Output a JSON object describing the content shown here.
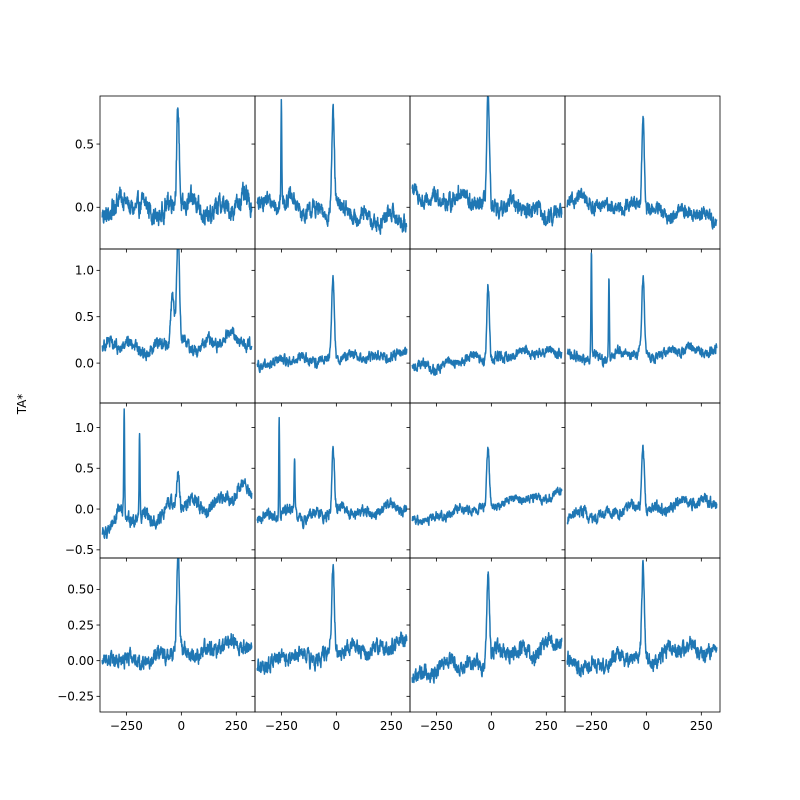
{
  "figure": {
    "ylabel": "TA*",
    "line_color": "#1f77b4",
    "frame_color": "#000000",
    "background": "#ffffff"
  },
  "chart_data": {
    "type": "line",
    "grid": false,
    "layout": "4x4 shared axes per row (y) and column (x)",
    "xlim": [
      -370,
      335
    ],
    "x_ticks": [
      -250,
      0,
      250
    ],
    "x_tick_labels": [
      "−250",
      "0",
      "250"
    ],
    "rows": [
      {
        "ylim": [
          -0.33,
          0.88
        ],
        "y_ticks": [
          0.0,
          0.5
        ],
        "y_tick_labels": [
          "0.0",
          "0.5"
        ]
      },
      {
        "ylim": [
          -0.43,
          1.23
        ],
        "y_ticks": [
          0.0,
          0.5,
          1.0
        ],
        "y_tick_labels": [
          "0.0",
          "0.5",
          "1.0"
        ]
      },
      {
        "ylim": [
          -0.6,
          1.3
        ],
        "y_ticks": [
          -0.5,
          0.0,
          0.5,
          1.0
        ],
        "y_tick_labels": [
          "−0.5",
          "0.0",
          "0.5",
          "1.0"
        ]
      },
      {
        "ylim": [
          -0.36,
          0.72
        ],
        "y_ticks": [
          -0.25,
          0.0,
          0.25,
          0.5
        ],
        "y_tick_labels": [
          "−0.25",
          "0.00",
          "0.25",
          "0.50"
        ]
      }
    ],
    "panels": [
      {
        "row": 0,
        "col": 0,
        "x_range": [
          -360,
          320
        ],
        "baseline": [
          0.0,
          0.0
        ],
        "noise": 0.06,
        "wave": 0.08,
        "lines": [
          {
            "x": -15,
            "height": 0.75,
            "width": 6
          }
        ]
      },
      {
        "row": 0,
        "col": 1,
        "x_range": [
          -360,
          320
        ],
        "baseline": [
          0.05,
          -0.12
        ],
        "noise": 0.05,
        "wave": 0.06,
        "lines": [
          {
            "x": -15,
            "height": 0.75,
            "width": 6
          },
          {
            "x": -250,
            "height": 0.78,
            "width": 2
          }
        ]
      },
      {
        "row": 0,
        "col": 2,
        "x_range": [
          -360,
          320
        ],
        "baseline": [
          0.1,
          -0.05
        ],
        "noise": 0.05,
        "wave": 0.06,
        "lines": [
          {
            "x": -15,
            "height": 0.82,
            "width": 6
          }
        ]
      },
      {
        "row": 0,
        "col": 3,
        "x_range": [
          -360,
          320
        ],
        "baseline": [
          0.05,
          -0.08
        ],
        "noise": 0.04,
        "wave": 0.04,
        "lines": [
          {
            "x": -15,
            "height": 0.72,
            "width": 6
          }
        ]
      },
      {
        "row": 1,
        "col": 0,
        "x_range": [
          -360,
          320
        ],
        "baseline": [
          0.15,
          0.25
        ],
        "noise": 0.05,
        "wave": 0.08,
        "lines": [
          {
            "x": -15,
            "height": 1.15,
            "width": 6
          },
          {
            "x": -40,
            "height": 0.55,
            "width": 8
          }
        ]
      },
      {
        "row": 1,
        "col": 1,
        "x_range": [
          -360,
          320
        ],
        "baseline": [
          0.0,
          0.1
        ],
        "noise": 0.04,
        "wave": 0.04,
        "lines": [
          {
            "x": -15,
            "height": 0.85,
            "width": 6
          }
        ]
      },
      {
        "row": 1,
        "col": 2,
        "x_range": [
          -360,
          320
        ],
        "baseline": [
          -0.05,
          0.15
        ],
        "noise": 0.04,
        "wave": 0.05,
        "lines": [
          {
            "x": -15,
            "height": 0.82,
            "width": 6
          }
        ]
      },
      {
        "row": 1,
        "col": 3,
        "x_range": [
          -360,
          320
        ],
        "baseline": [
          0.05,
          0.15
        ],
        "noise": 0.04,
        "wave": 0.05,
        "lines": [
          {
            "x": -15,
            "height": 0.8,
            "width": 6
          },
          {
            "x": -250,
            "height": 1.15,
            "width": 2
          },
          {
            "x": -170,
            "height": 0.88,
            "width": 2
          }
        ]
      },
      {
        "row": 2,
        "col": 0,
        "x_range": [
          -360,
          320
        ],
        "baseline": [
          -0.2,
          0.2
        ],
        "noise": 0.06,
        "wave": 0.12,
        "lines": [
          {
            "x": -15,
            "height": 0.45,
            "width": 6
          },
          {
            "x": -260,
            "height": 1.2,
            "width": 2
          },
          {
            "x": -190,
            "height": 1.0,
            "width": 2
          }
        ]
      },
      {
        "row": 2,
        "col": 1,
        "x_range": [
          -360,
          320
        ],
        "baseline": [
          -0.1,
          0.0
        ],
        "noise": 0.05,
        "wave": 0.07,
        "lines": [
          {
            "x": -15,
            "height": 0.75,
            "width": 6
          },
          {
            "x": -260,
            "height": 1.18,
            "width": 2
          },
          {
            "x": -190,
            "height": 0.7,
            "width": 2
          }
        ]
      },
      {
        "row": 2,
        "col": 2,
        "x_range": [
          -360,
          320
        ],
        "baseline": [
          -0.15,
          0.2
        ],
        "noise": 0.04,
        "wave": 0.04,
        "lines": [
          {
            "x": -15,
            "height": 0.72,
            "width": 6
          }
        ]
      },
      {
        "row": 2,
        "col": 3,
        "x_range": [
          -360,
          320
        ],
        "baseline": [
          -0.1,
          0.1
        ],
        "noise": 0.05,
        "wave": 0.06,
        "lines": [
          {
            "x": -15,
            "height": 0.74,
            "width": 6
          }
        ]
      },
      {
        "row": 3,
        "col": 0,
        "x_range": [
          -360,
          320
        ],
        "baseline": [
          -0.02,
          0.12
        ],
        "noise": 0.04,
        "wave": 0.04,
        "lines": [
          {
            "x": -15,
            "height": 0.7,
            "width": 6
          }
        ]
      },
      {
        "row": 3,
        "col": 1,
        "x_range": [
          -360,
          320
        ],
        "baseline": [
          -0.02,
          0.12
        ],
        "noise": 0.04,
        "wave": 0.04,
        "lines": [
          {
            "x": -15,
            "height": 0.6,
            "width": 6
          }
        ]
      },
      {
        "row": 3,
        "col": 2,
        "x_range": [
          -360,
          320
        ],
        "baseline": [
          -0.1,
          0.12
        ],
        "noise": 0.04,
        "wave": 0.05,
        "lines": [
          {
            "x": -15,
            "height": 0.66,
            "width": 6
          }
        ]
      },
      {
        "row": 3,
        "col": 3,
        "x_range": [
          -360,
          320
        ],
        "baseline": [
          -0.05,
          0.1
        ],
        "noise": 0.04,
        "wave": 0.05,
        "lines": [
          {
            "x": -15,
            "height": 0.63,
            "width": 6
          }
        ]
      }
    ]
  }
}
